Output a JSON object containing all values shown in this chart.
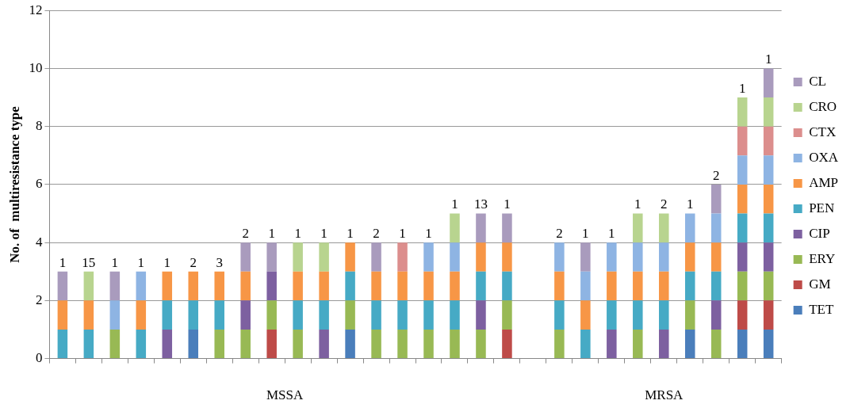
{
  "chart_data": {
    "type": "bar",
    "stacked": true,
    "ylabel": "No. of  multiresistance type",
    "categories": [
      null,
      null,
      null,
      null,
      null,
      null,
      null,
      null,
      null,
      null,
      null,
      null,
      null,
      null,
      null,
      null,
      null,
      null,
      null,
      null,
      null,
      null,
      null,
      null,
      null,
      null,
      null,
      null
    ],
    "series": [
      {
        "name": "TET",
        "color": "#4a7ebb",
        "values": [
          null,
          null,
          null,
          null,
          null,
          1,
          null,
          null,
          null,
          null,
          null,
          1,
          null,
          null,
          null,
          null,
          null,
          null,
          null,
          null,
          null,
          null,
          null,
          null,
          1,
          null,
          1,
          1
        ]
      },
      {
        "name": "GM",
        "color": "#be4b48",
        "values": [
          null,
          null,
          null,
          null,
          null,
          null,
          null,
          null,
          1,
          null,
          null,
          null,
          null,
          null,
          null,
          null,
          null,
          1,
          null,
          null,
          null,
          null,
          null,
          null,
          null,
          null,
          1,
          1
        ]
      },
      {
        "name": "ERY",
        "color": "#98b954",
        "values": [
          null,
          null,
          1,
          null,
          null,
          null,
          1,
          1,
          1,
          1,
          null,
          1,
          1,
          1,
          1,
          1,
          1,
          1,
          null,
          1,
          null,
          null,
          1,
          null,
          1,
          1,
          1,
          1
        ]
      },
      {
        "name": "CIP",
        "color": "#7d60a0",
        "values": [
          null,
          null,
          null,
          null,
          1,
          null,
          null,
          1,
          1,
          null,
          1,
          null,
          null,
          null,
          null,
          null,
          1,
          null,
          null,
          null,
          null,
          1,
          null,
          1,
          null,
          1,
          1,
          1
        ]
      },
      {
        "name": "PEN",
        "color": "#46aac5",
        "values": [
          1,
          1,
          null,
          1,
          1,
          1,
          1,
          null,
          null,
          1,
          1,
          1,
          1,
          1,
          1,
          1,
          1,
          1,
          null,
          1,
          1,
          1,
          1,
          1,
          1,
          1,
          1,
          1
        ]
      },
      {
        "name": "AMP",
        "color": "#f79646",
        "values": [
          1,
          1,
          null,
          1,
          1,
          1,
          1,
          1,
          null,
          1,
          1,
          1,
          1,
          1,
          1,
          1,
          1,
          1,
          null,
          1,
          1,
          1,
          1,
          1,
          1,
          1,
          1,
          1
        ]
      },
      {
        "name": "OXA",
        "color": "#8eb4e3",
        "values": [
          null,
          null,
          1,
          1,
          null,
          null,
          null,
          null,
          null,
          null,
          null,
          null,
          null,
          null,
          1,
          1,
          null,
          null,
          null,
          1,
          1,
          1,
          1,
          1,
          1,
          1,
          1,
          1
        ]
      },
      {
        "name": "CTX",
        "color": "#dc8e8d",
        "values": [
          null,
          null,
          null,
          null,
          null,
          null,
          null,
          null,
          null,
          null,
          null,
          null,
          null,
          1,
          null,
          null,
          null,
          null,
          null,
          null,
          null,
          null,
          null,
          null,
          null,
          null,
          1,
          1
        ]
      },
      {
        "name": "CRO",
        "color": "#b8d48f",
        "values": [
          null,
          1,
          null,
          null,
          null,
          null,
          null,
          null,
          null,
          1,
          1,
          null,
          null,
          null,
          null,
          1,
          null,
          null,
          null,
          null,
          null,
          null,
          1,
          1,
          null,
          null,
          1,
          1
        ]
      },
      {
        "name": "CL",
        "color": "#a99bbd",
        "values": [
          1,
          null,
          1,
          null,
          null,
          null,
          null,
          1,
          1,
          null,
          null,
          null,
          1,
          null,
          null,
          null,
          1,
          1,
          null,
          null,
          1,
          null,
          null,
          null,
          null,
          1,
          null,
          1
        ]
      }
    ],
    "annotations": [
      "MSSA",
      "MRSA",
      {
        "text": "1",
        "y": 3
      },
      {
        "text": "15",
        "y": 3
      },
      {
        "text": "1",
        "y": 3
      },
      {
        "text": "1",
        "y": 3
      },
      {
        "text": "1",
        "y": 3
      },
      {
        "text": "2",
        "y": 3
      },
      {
        "text": "3",
        "y": 3
      },
      {
        "text": "2",
        "y": 4
      },
      {
        "text": "1",
        "y": 4
      },
      {
        "text": "1",
        "y": 4
      },
      {
        "text": "1",
        "y": 4
      },
      {
        "text": "1",
        "y": 4
      },
      {
        "text": "2",
        "y": 4
      },
      {
        "text": "1",
        "y": 4
      },
      {
        "text": "1",
        "y": 4
      },
      {
        "text": "1",
        "y": 5
      },
      {
        "text": "13",
        "y": 5
      },
      {
        "text": "1",
        "y": 5
      },
      {
        "text": "2",
        "y": 4
      },
      {
        "text": "1",
        "y": 4
      },
      {
        "text": "1",
        "y": 4
      },
      {
        "text": "1",
        "y": 5
      },
      {
        "text": "2",
        "y": 5
      },
      {
        "text": "1",
        "y": 5
      },
      {
        "text": "2",
        "y": 6
      },
      {
        "text": "1",
        "y": 9
      },
      {
        "text": "1",
        "y": 10
      }
    ],
    "ylim": [
      0,
      12
    ],
    "yticks": [
      0,
      2,
      4,
      6,
      8,
      10,
      12
    ],
    "grid": "y",
    "legend": "right"
  }
}
